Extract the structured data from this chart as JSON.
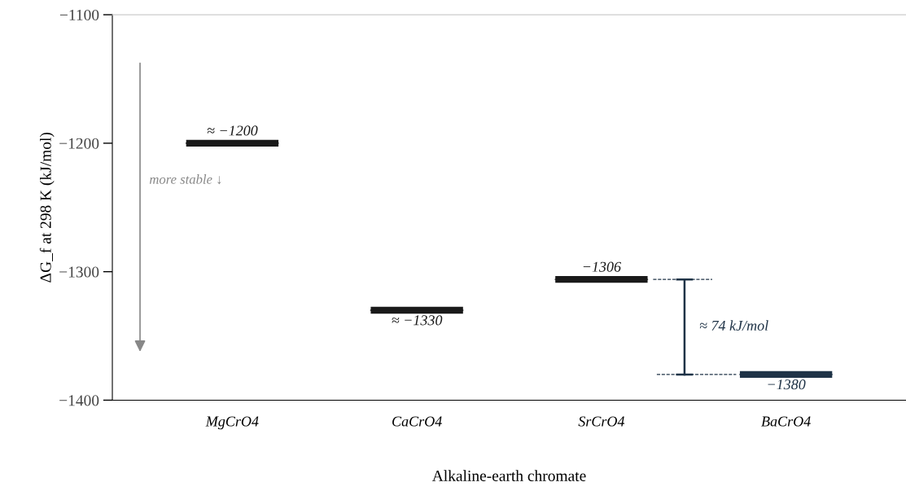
{
  "chart_data": {
    "type": "box",
    "xlabel": "Alkaline-earth chromate",
    "ylabel": "ΔG_f at 298 K (kJ/mol)",
    "categories": [
      "MgCrO4",
      "CaCrO4",
      "SrCrO4",
      "BaCrO4"
    ],
    "boxes": [
      {
        "low": -1200,
        "q1": -1200,
        "median": -1200,
        "q3": -1200,
        "high": -1200
      },
      {
        "low": -1330,
        "q1": -1330,
        "median": -1330,
        "q3": -1330,
        "high": -1330
      },
      {
        "low": -1306,
        "q1": -1306,
        "median": -1306,
        "q3": -1306,
        "high": -1306
      },
      {
        "low": -1380,
        "q1": -1380,
        "median": -1380,
        "q3": -1380,
        "high": -1380
      }
    ],
    "colors": [
      "#1a1a1a",
      "#1a1a1a",
      "#1a1a1a",
      "#1f3347"
    ],
    "value_labels": [
      "≈ −1200",
      "≈ −1330",
      "−1306",
      "−1380"
    ],
    "ylim": [
      -1400,
      -1100
    ],
    "yticks": [
      {
        "value": -1400,
        "label": "−1400"
      },
      {
        "value": -1300,
        "label": "−1300"
      },
      {
        "value": -1200,
        "label": "−1200"
      },
      {
        "value": -1100,
        "label": "−1100"
      }
    ],
    "annotations": [
      "more stable ↓",
      "≈ 74 kJ/mol"
    ],
    "grid": false,
    "legend": false
  }
}
